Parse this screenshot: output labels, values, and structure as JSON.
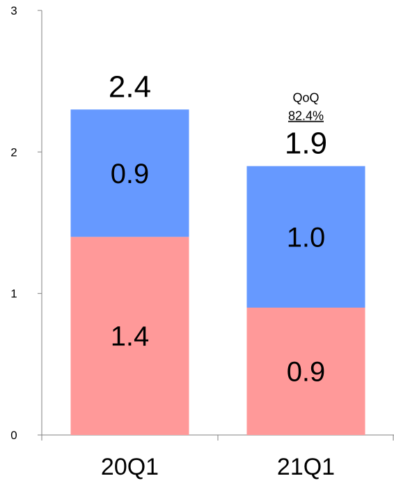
{
  "chart_data": {
    "type": "bar",
    "stacked": true,
    "categories": [
      "20Q1",
      "21Q1"
    ],
    "series": [
      {
        "values": [
          1.4,
          0.9
        ],
        "color": "#ff9999"
      },
      {
        "values": [
          0.9,
          1.0
        ],
        "color": "#6699ff"
      }
    ],
    "segment_labels": [
      [
        "1.4",
        "0.9"
      ],
      [
        "0.9",
        "1.0"
      ]
    ],
    "totals": [
      2.4,
      1.9
    ],
    "total_labels": [
      "2.4",
      "1.9"
    ],
    "ylim": [
      0,
      3
    ],
    "yticks": [
      "0",
      "1",
      "2",
      "3"
    ],
    "grid": false,
    "annotation": {
      "title": "QoQ",
      "value": "82.4%",
      "category_index": 1
    },
    "title": "",
    "xlabel": "",
    "ylabel": ""
  }
}
